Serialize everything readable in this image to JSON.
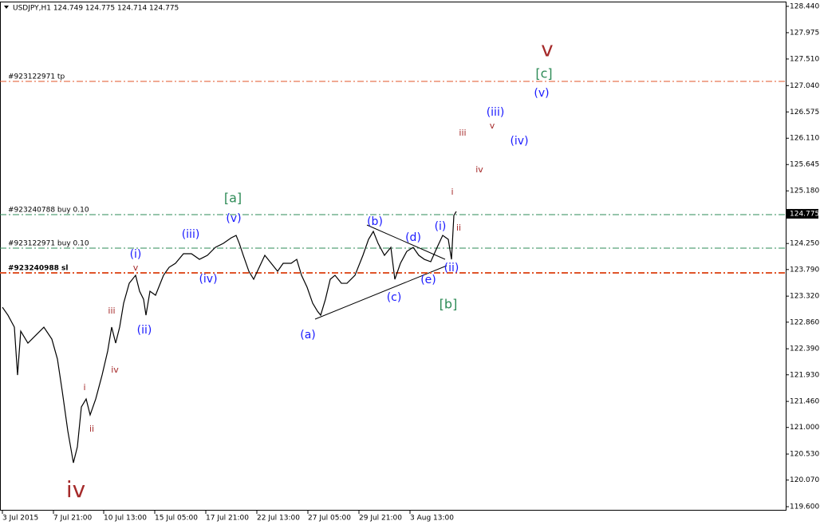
{
  "chart_data": {
    "type": "line",
    "title": "USDJPY,H1  124.749 124.775 124.714 124.775",
    "color": "#000000",
    "x": [
      3,
      10,
      18,
      22,
      26,
      35,
      45,
      55,
      65,
      72,
      78,
      85,
      92,
      97,
      102,
      108,
      113,
      120,
      128,
      135,
      140,
      145,
      150,
      155,
      162,
      170,
      175,
      180,
      183,
      188,
      195,
      205,
      212,
      220,
      230,
      240,
      250,
      260,
      270,
      280,
      290,
      296,
      300,
      305,
      312,
      318,
      325,
      332,
      340,
      348,
      355,
      365,
      372,
      378,
      385,
      392,
      398,
      402,
      408,
      414,
      420,
      428,
      435,
      445,
      455,
      462,
      468,
      474,
      482,
      490,
      495,
      502,
      510,
      518,
      525,
      532,
      540,
      548,
      555,
      562,
      566,
      569,
      572
    ],
    "values": [
      123.124,
      122.983,
      122.772,
      121.926,
      122.701,
      122.49,
      122.631,
      122.772,
      122.56,
      122.208,
      121.644,
      120.939,
      120.375,
      120.657,
      121.362,
      121.503,
      121.221,
      121.503,
      121.926,
      122.349,
      122.772,
      122.49,
      122.772,
      123.195,
      123.547,
      123.688,
      123.406,
      123.265,
      122.983,
      123.406,
      123.336,
      123.688,
      123.829,
      123.9,
      124.069,
      124.069,
      123.97,
      124.041,
      124.182,
      124.252,
      124.351,
      124.393,
      124.252,
      124.041,
      123.759,
      123.618,
      123.829,
      124.041,
      123.9,
      123.759,
      123.9,
      123.9,
      123.97,
      123.688,
      123.477,
      123.195,
      123.054,
      122.983,
      123.265,
      123.618,
      123.688,
      123.547,
      123.547,
      123.688,
      124.041,
      124.323,
      124.464,
      124.252,
      124.041,
      124.182,
      123.618,
      123.9,
      124.111,
      124.182,
      124.041,
      123.97,
      123.928,
      124.182,
      124.393,
      124.323,
      123.97,
      124.746,
      124.816
    ],
    "xlim": [
      0,
      985
    ],
    "ylim": [
      119.53,
      128.51
    ],
    "xticks": [
      {
        "value": 3,
        "label": "3 Jul 2015"
      },
      {
        "value": 67,
        "label": "7 Jul 21:00"
      },
      {
        "value": 130,
        "label": "10 Jul 13:00"
      },
      {
        "value": 194,
        "label": "15 Jul 05:00"
      },
      {
        "value": 258,
        "label": "17 Jul 21:00"
      },
      {
        "value": 322,
        "label": "22 Jul 13:00"
      },
      {
        "value": 386,
        "label": "27 Jul 05:00"
      },
      {
        "value": 450,
        "label": "29 Jul 21:00"
      },
      {
        "value": 514,
        "label": "3 Aug 13:00"
      }
    ],
    "yticks": [
      {
        "value": 128.44,
        "label": "128.440"
      },
      127.975,
      {
        "value": 127.51,
        "label": "127.510"
      },
      {
        "value": 127.04,
        "label": "127.040"
      },
      126.575,
      {
        "value": 126.11,
        "label": "126.110"
      },
      125.645,
      {
        "value": 125.18,
        "label": "125.180"
      },
      {
        "value": 124.25,
        "label": "124.250"
      },
      {
        "value": 123.79,
        "label": "123.790"
      },
      {
        "value": 123.32,
        "label": "123.320"
      },
      {
        "value": 122.86,
        "label": "122.860"
      },
      {
        "value": 122.39,
        "label": "122.390"
      },
      {
        "value": 121.93,
        "label": "121.930"
      },
      {
        "value": 121.46,
        "label": "121.460"
      },
      {
        "value": 121.0,
        "label": "121.000"
      },
      {
        "value": 120.53,
        "label": "120.530"
      },
      {
        "value": 120.07,
        "label": "120.070"
      },
      {
        "value": 119.6,
        "label": "119.600"
      }
    ],
    "current_price": 124.775,
    "orders": [
      {
        "label": "#923122971 tp",
        "value": 127.115,
        "color": "#e0552a"
      },
      {
        "label": "#923240788 buy 0.10",
        "value": 124.76,
        "color": "#2e8b57"
      },
      {
        "label": "#923122971 buy 0.10",
        "value": 124.168,
        "color": "#2e8b57"
      },
      {
        "label": "#923240988 sl",
        "value": 123.731,
        "color": "#e0552a"
      }
    ],
    "annotations": [
      {
        "text": "v",
        "x": 686,
        "y": 127.665,
        "color": "#a52a2a",
        "size": 26
      },
      {
        "text": "[c]",
        "x": 682,
        "y": 127.241,
        "color": "#2e8b57",
        "size": 16
      },
      {
        "text": "(v)",
        "x": 679,
        "y": 126.902,
        "color": "#1a1aff",
        "size": 14
      },
      {
        "text": "(iii)",
        "x": 621,
        "y": 126.565,
        "color": "#1a1aff",
        "size": 14
      },
      {
        "text": "v",
        "x": 617,
        "y": 126.325,
        "color": "#a52a2a",
        "size": 11
      },
      {
        "text": "iii",
        "x": 580,
        "y": 126.198,
        "color": "#a52a2a",
        "size": 11
      },
      {
        "text": "(iv)",
        "x": 651,
        "y": 126.057,
        "color": "#1a1aff",
        "size": 14
      },
      {
        "text": "iv",
        "x": 601,
        "y": 125.549,
        "color": "#a52a2a",
        "size": 11
      },
      {
        "text": "i",
        "x": 567,
        "y": 125.155,
        "color": "#a52a2a",
        "size": 11
      },
      {
        "text": "ii",
        "x": 575,
        "y": 124.52,
        "color": "#a52a2a",
        "size": 11
      },
      {
        "text": "[a]",
        "x": 292,
        "y": 125.042,
        "color": "#2e8b57",
        "size": 16
      },
      {
        "text": "(v)",
        "x": 293,
        "y": 124.69,
        "color": "#1a1aff",
        "size": 14
      },
      {
        "text": "(iii)",
        "x": 239,
        "y": 124.407,
        "color": "#1a1aff",
        "size": 14
      },
      {
        "text": "(iv)",
        "x": 261,
        "y": 123.618,
        "color": "#1a1aff",
        "size": 14
      },
      {
        "text": "(i)",
        "x": 170,
        "y": 124.055,
        "color": "#1a1aff",
        "size": 14
      },
      {
        "text": "v",
        "x": 170,
        "y": 123.815,
        "color": "#a52a2a",
        "size": 11
      },
      {
        "text": "iii",
        "x": 140,
        "y": 123.054,
        "color": "#a52a2a",
        "size": 11
      },
      {
        "text": "(ii)",
        "x": 181,
        "y": 122.716,
        "color": "#1a1aff",
        "size": 14
      },
      {
        "text": "iv",
        "x": 144,
        "y": 122.011,
        "color": "#a52a2a",
        "size": 11
      },
      {
        "text": "i",
        "x": 106,
        "y": 121.701,
        "color": "#a52a2a",
        "size": 11
      },
      {
        "text": "ii",
        "x": 115,
        "y": 120.967,
        "color": "#a52a2a",
        "size": 11
      },
      {
        "text": "iv",
        "x": 95,
        "y": 119.882,
        "color": "#a52a2a",
        "size": 28
      },
      {
        "text": "(b)",
        "x": 470,
        "y": 124.633,
        "color": "#1a1aff",
        "size": 14
      },
      {
        "text": "(d)",
        "x": 518,
        "y": 124.351,
        "color": "#1a1aff",
        "size": 14
      },
      {
        "text": "(i)",
        "x": 552,
        "y": 124.548,
        "color": "#1a1aff",
        "size": 14
      },
      {
        "text": "(e)",
        "x": 537,
        "y": 123.603,
        "color": "#1a1aff",
        "size": 14
      },
      {
        "text": "(ii)",
        "x": 566,
        "y": 123.815,
        "color": "#1a1aff",
        "size": 14
      },
      {
        "text": "(c)",
        "x": 494,
        "y": 123.293,
        "color": "#1a1aff",
        "size": 14
      },
      {
        "text": "[b]",
        "x": 562,
        "y": 123.166,
        "color": "#2e8b57",
        "size": 16
      },
      {
        "text": "(a)",
        "x": 386,
        "y": 122.631,
        "color": "#1a1aff",
        "size": 14
      }
    ]
  }
}
